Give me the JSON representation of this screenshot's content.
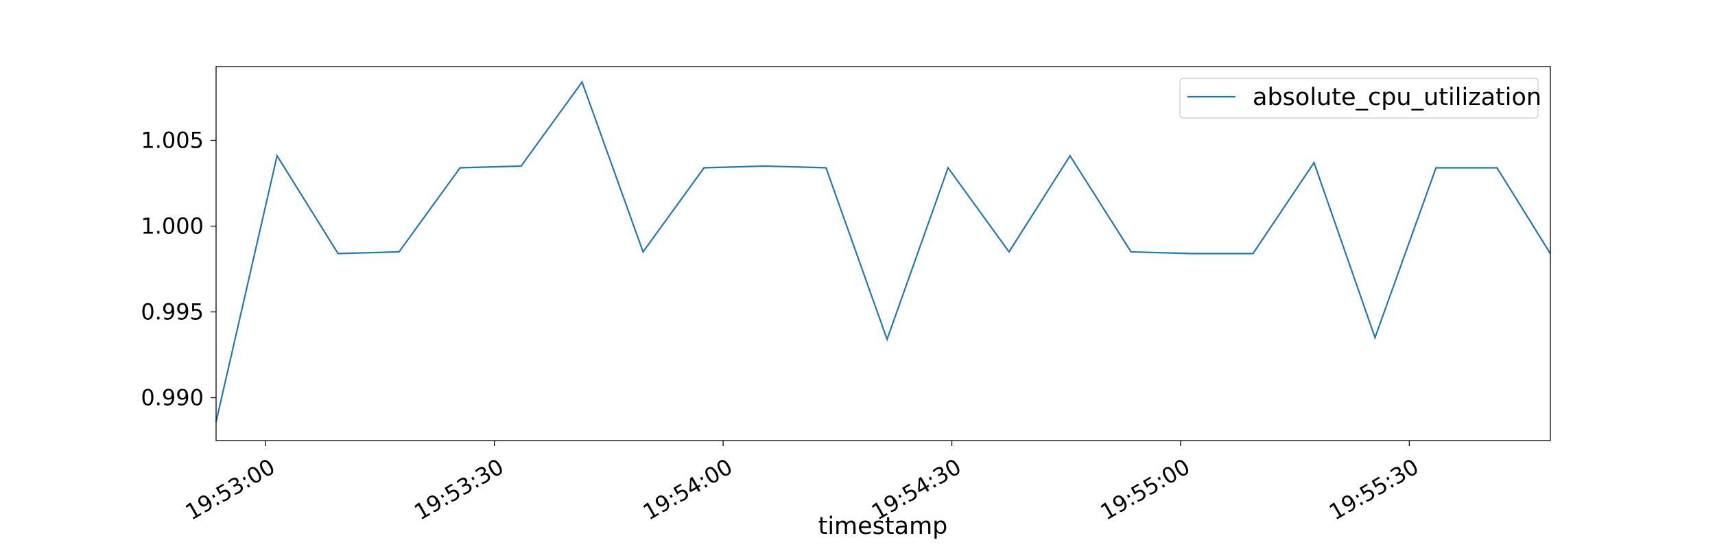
{
  "chart_data": {
    "type": "line",
    "title": "",
    "xlabel": "timestamp",
    "ylabel": "",
    "x_tick_labels": [
      "19:53:00",
      "19:53:30",
      "19:54:00",
      "19:54:30",
      "19:55:00",
      "19:55:30"
    ],
    "y_tick_labels": [
      "0.990",
      "0.995",
      "1.000",
      "1.005"
    ],
    "ylim": [
      0.9875,
      1.0093
    ],
    "xlim": [
      "19:52:53.5",
      "19:55:48.5"
    ],
    "grid": false,
    "legend_position": "upper right",
    "x": [
      "19:52:53.5",
      "19:53:01.5",
      "19:53:09.5",
      "19:53:17.5",
      "19:53:25.5",
      "19:53:33.5",
      "19:53:41.5",
      "19:53:49.5",
      "19:53:57.5",
      "19:54:05.5",
      "19:54:13.5",
      "19:54:21.5",
      "19:54:29.5",
      "19:54:37.5",
      "19:54:45.5",
      "19:54:53.5",
      "19:55:01.5",
      "19:55:09.5",
      "19:55:17.5",
      "19:55:25.5",
      "19:55:33.5",
      "19:55:41.5",
      "19:55:48.5"
    ],
    "series": [
      {
        "name": "absolute_cpu_utilization",
        "color": "#1f77b4",
        "values": [
          0.9886,
          1.0041,
          0.9984,
          0.9985,
          1.0034,
          1.0035,
          1.0084,
          0.9985,
          1.0034,
          1.0035,
          1.0034,
          0.9934,
          1.0034,
          0.9985,
          1.0041,
          0.9985,
          0.9984,
          0.9984,
          1.0037,
          0.9935,
          1.0034,
          1.0034,
          0.9984
        ]
      }
    ]
  }
}
